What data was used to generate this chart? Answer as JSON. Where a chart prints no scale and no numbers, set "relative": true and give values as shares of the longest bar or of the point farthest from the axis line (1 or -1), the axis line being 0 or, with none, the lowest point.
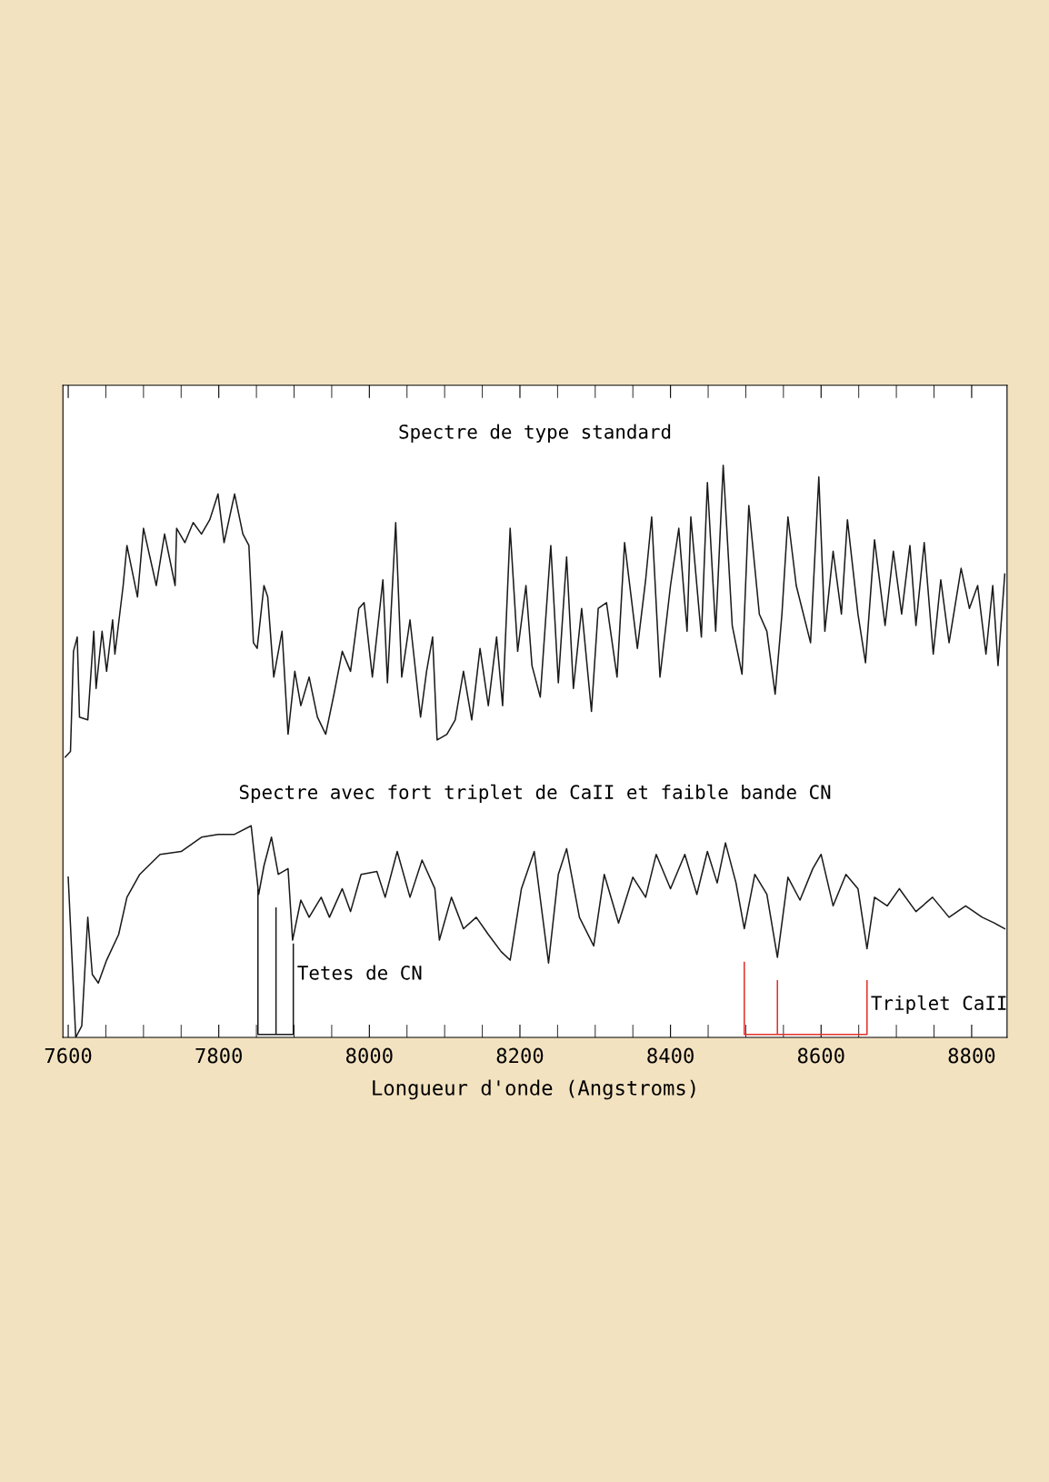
{
  "chart_data": {
    "type": "line",
    "xlabel": "Longueur d'onde (Angstroms)",
    "relative": true,
    "xlim": [
      7593,
      8847
    ],
    "xticks": [
      7600,
      7800,
      8000,
      8200,
      8400,
      8600,
      8800
    ],
    "grid": false,
    "legend": false,
    "tick_labels": "x",
    "series": [
      {
        "name": "Spectre de type standard",
        "color": "#1a1a1a",
        "x": [
          7596,
          7603,
          7607,
          7612,
          7615,
          7626,
          7634,
          7637,
          7645,
          7651,
          7659,
          7662,
          7673,
          7678,
          7692,
          7700,
          7717,
          7728,
          7742,
          7744,
          7755,
          7766,
          7777,
          7788,
          7799,
          7807,
          7821,
          7832,
          7840,
          7846,
          7851,
          7860,
          7865,
          7873,
          7884,
          7892,
          7901,
          7909,
          7920,
          7931,
          7942,
          7953,
          7964,
          7975,
          7986,
          7993,
          8004,
          8018,
          8024,
          8035,
          8043,
          8054,
          8068,
          8076,
          8084,
          8090,
          8103,
          8114,
          8125,
          8136,
          8147,
          8158,
          8169,
          8177,
          8187,
          8197,
          8208,
          8216,
          8227,
          8241,
          8251,
          8262,
          8271,
          8282,
          8295,
          8304,
          8315,
          8329,
          8339,
          8356,
          8367,
          8375,
          8386,
          8400,
          8411,
          8422,
          8427,
          8441,
          8449,
          8460,
          8470,
          8482,
          8495,
          8504,
          8518,
          8528,
          8539,
          8548,
          8556,
          8567,
          8586,
          8597,
          8605,
          8616,
          8627,
          8635,
          8649,
          8659,
          8671,
          8685,
          8696,
          8707,
          8718,
          8726,
          8737,
          8749,
          8759,
          8770,
          8786,
          8797,
          8808,
          8819,
          8828,
          8835,
          8844
        ],
        "values": [
          0.49,
          0.5,
          0.675,
          0.7,
          0.56,
          0.555,
          0.71,
          0.61,
          0.71,
          0.64,
          0.73,
          0.67,
          0.79,
          0.86,
          0.77,
          0.89,
          0.79,
          0.88,
          0.79,
          0.89,
          0.865,
          0.9,
          0.88,
          0.905,
          0.95,
          0.865,
          0.95,
          0.88,
          0.86,
          0.69,
          0.68,
          0.79,
          0.77,
          0.63,
          0.71,
          0.53,
          0.64,
          0.58,
          0.63,
          0.56,
          0.53,
          0.6,
          0.675,
          0.64,
          0.75,
          0.76,
          0.63,
          0.8,
          0.62,
          0.9,
          0.63,
          0.73,
          0.56,
          0.64,
          0.7,
          0.52,
          0.53,
          0.555,
          0.64,
          0.555,
          0.68,
          0.58,
          0.7,
          0.58,
          0.89,
          0.675,
          0.79,
          0.65,
          0.595,
          0.86,
          0.62,
          0.84,
          0.61,
          0.75,
          0.57,
          0.75,
          0.76,
          0.63,
          0.865,
          0.68,
          0.8,
          0.91,
          0.63,
          0.79,
          0.89,
          0.71,
          0.91,
          0.7,
          0.97,
          0.71,
          1.0,
          0.72,
          0.635,
          0.93,
          0.74,
          0.71,
          0.6,
          0.74,
          0.91,
          0.79,
          0.69,
          0.98,
          0.71,
          0.85,
          0.74,
          0.905,
          0.74,
          0.655,
          0.87,
          0.72,
          0.85,
          0.74,
          0.86,
          0.72,
          0.865,
          0.67,
          0.8,
          0.69,
          0.82,
          0.75,
          0.79,
          0.67,
          0.79,
          0.65,
          0.81
        ]
      },
      {
        "name": "Spectre avec fort triplet de CaII et faible bande CN",
        "color": "#1a1a1a",
        "x": [
          7600,
          7610,
          7618,
          7626,
          7632,
          7640,
          7651,
          7667,
          7678,
          7695,
          7722,
          7750,
          7777,
          7799,
          7821,
          7843,
          7853,
          7860,
          7870,
          7879,
          7892,
          7898,
          7909,
          7920,
          7936,
          7947,
          7964,
          7975,
          7989,
          8010,
          8021,
          8037,
          8054,
          8070,
          8087,
          8093,
          8109,
          8125,
          8142,
          8158,
          8175,
          8187,
          8202,
          8219,
          8238,
          8251,
          8262,
          8279,
          8298,
          8312,
          8331,
          8350,
          8367,
          8381,
          8400,
          8419,
          8435,
          8449,
          8462,
          8473,
          8487,
          8498,
          8512,
          8528,
          8542,
          8556,
          8572,
          8589,
          8600,
          8616,
          8633,
          8649,
          8661,
          8671,
          8688,
          8704,
          8726,
          8748,
          8770,
          8792,
          8814,
          8830,
          8844
        ],
        "values": [
          0.28,
          0.0,
          0.02,
          0.21,
          0.11,
          0.095,
          0.135,
          0.18,
          0.245,
          0.285,
          0.32,
          0.325,
          0.35,
          0.355,
          0.355,
          0.37,
          0.25,
          0.3,
          0.35,
          0.285,
          0.295,
          0.17,
          0.24,
          0.21,
          0.245,
          0.21,
          0.26,
          0.22,
          0.285,
          0.29,
          0.245,
          0.325,
          0.245,
          0.31,
          0.26,
          0.17,
          0.245,
          0.19,
          0.21,
          0.18,
          0.15,
          0.135,
          0.26,
          0.325,
          0.13,
          0.285,
          0.33,
          0.21,
          0.16,
          0.285,
          0.2,
          0.28,
          0.245,
          0.32,
          0.26,
          0.32,
          0.25,
          0.325,
          0.27,
          0.34,
          0.27,
          0.19,
          0.285,
          0.25,
          0.14,
          0.28,
          0.24,
          0.295,
          0.32,
          0.23,
          0.285,
          0.26,
          0.155,
          0.245,
          0.23,
          0.26,
          0.22,
          0.245,
          0.21,
          0.23,
          0.21,
          0.2,
          0.19
        ]
      },
      {
        "name": "Tetes de CN",
        "color": "#1a1a1a",
        "x": [
          7852,
          7852,
          7899,
          7899,
          7880,
          7876,
          7876
        ],
        "values": [
          0.258,
          0.005,
          0.005,
          0.163,
          null,
          0.226,
          0.005
        ]
      },
      {
        "name": "Triplet CaII",
        "color": "#e0302a",
        "x": [
          8498,
          8498,
          8661,
          8661,
          8600,
          8542,
          8542
        ],
        "values": [
          0.131,
          0.005,
          0.005,
          0.099,
          null,
          0.099,
          0.005
        ]
      }
    ]
  }
}
